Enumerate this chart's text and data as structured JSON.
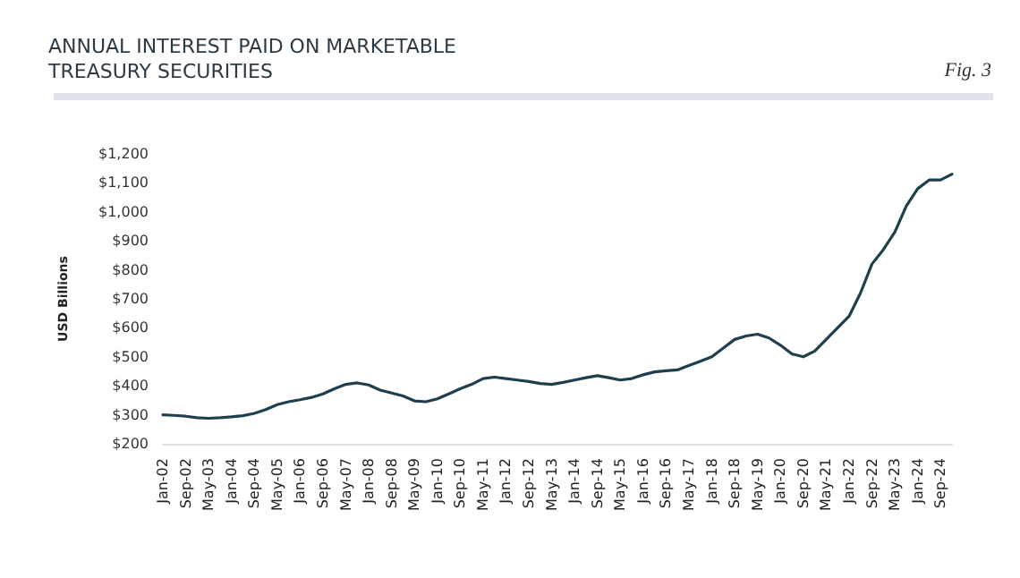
{
  "chart_data": {
    "type": "line",
    "title": "ANNUAL INTEREST PAID ON MARKETABLE\nTREASURY SECURITIES",
    "ylabel": "USD Billions",
    "annotations": [
      "Fig. 3"
    ],
    "categories": [
      "Jan-02",
      null,
      "Sep-02",
      null,
      "May-03",
      null,
      "Jan-04",
      null,
      "Sep-04",
      null,
      "May-05",
      null,
      "Jan-06",
      null,
      "Sep-06",
      null,
      "May-07",
      null,
      "Jan-08",
      null,
      "Sep-08",
      null,
      "May-09",
      null,
      "Jan-10",
      null,
      "Sep-10",
      null,
      "May-11",
      null,
      "Jan-12",
      null,
      "Sep-12",
      null,
      "May-13",
      null,
      "Jan-14",
      null,
      "Sep-14",
      null,
      "May-15",
      null,
      "Jan-16",
      null,
      "Sep-16",
      null,
      "May-17",
      null,
      "Jan-18",
      null,
      "Sep-18",
      null,
      "May-19",
      null,
      "Jan-20",
      null,
      "Sep-20",
      null,
      "May-21",
      null,
      "Jan-22",
      null,
      "Sep-22",
      null,
      "May-23",
      null,
      "Jan-24",
      null,
      "Sep-24",
      null
    ],
    "series": [
      {
        "color": "#1f3f4f",
        "values": [
          300,
          298,
          295,
          290,
          288,
          290,
          293,
          297,
          305,
          318,
          335,
          345,
          352,
          360,
          372,
          390,
          405,
          410,
          403,
          385,
          375,
          365,
          348,
          345,
          355,
          372,
          390,
          405,
          425,
          430,
          425,
          420,
          415,
          408,
          405,
          412,
          420,
          428,
          435,
          428,
          420,
          425,
          438,
          448,
          452,
          455,
          470,
          485,
          500,
          530,
          560,
          572,
          578,
          565,
          540,
          510,
          500,
          520,
          560,
          600,
          640,
          720,
          820,
          870,
          930,
          1020,
          1080,
          1110,
          1110,
          1130
        ]
      }
    ],
    "ylim": [
      200,
      1200
    ],
    "yticks": [
      {
        "value": 200,
        "label": "$200"
      },
      {
        "value": 300,
        "label": "$300"
      },
      {
        "value": 400,
        "label": "$400"
      },
      {
        "value": 500,
        "label": "$500"
      },
      {
        "value": 600,
        "label": "$600"
      },
      {
        "value": 700,
        "label": "$700"
      },
      {
        "value": 800,
        "label": "$800"
      },
      {
        "value": 900,
        "label": "$900"
      },
      {
        "value": 1000,
        "label": "$1,000"
      },
      {
        "value": 1100,
        "label": "$1,100"
      },
      {
        "value": 1200,
        "label": "$1,200"
      }
    ],
    "grid": false,
    "marker": "none",
    "line_style": "solid"
  }
}
